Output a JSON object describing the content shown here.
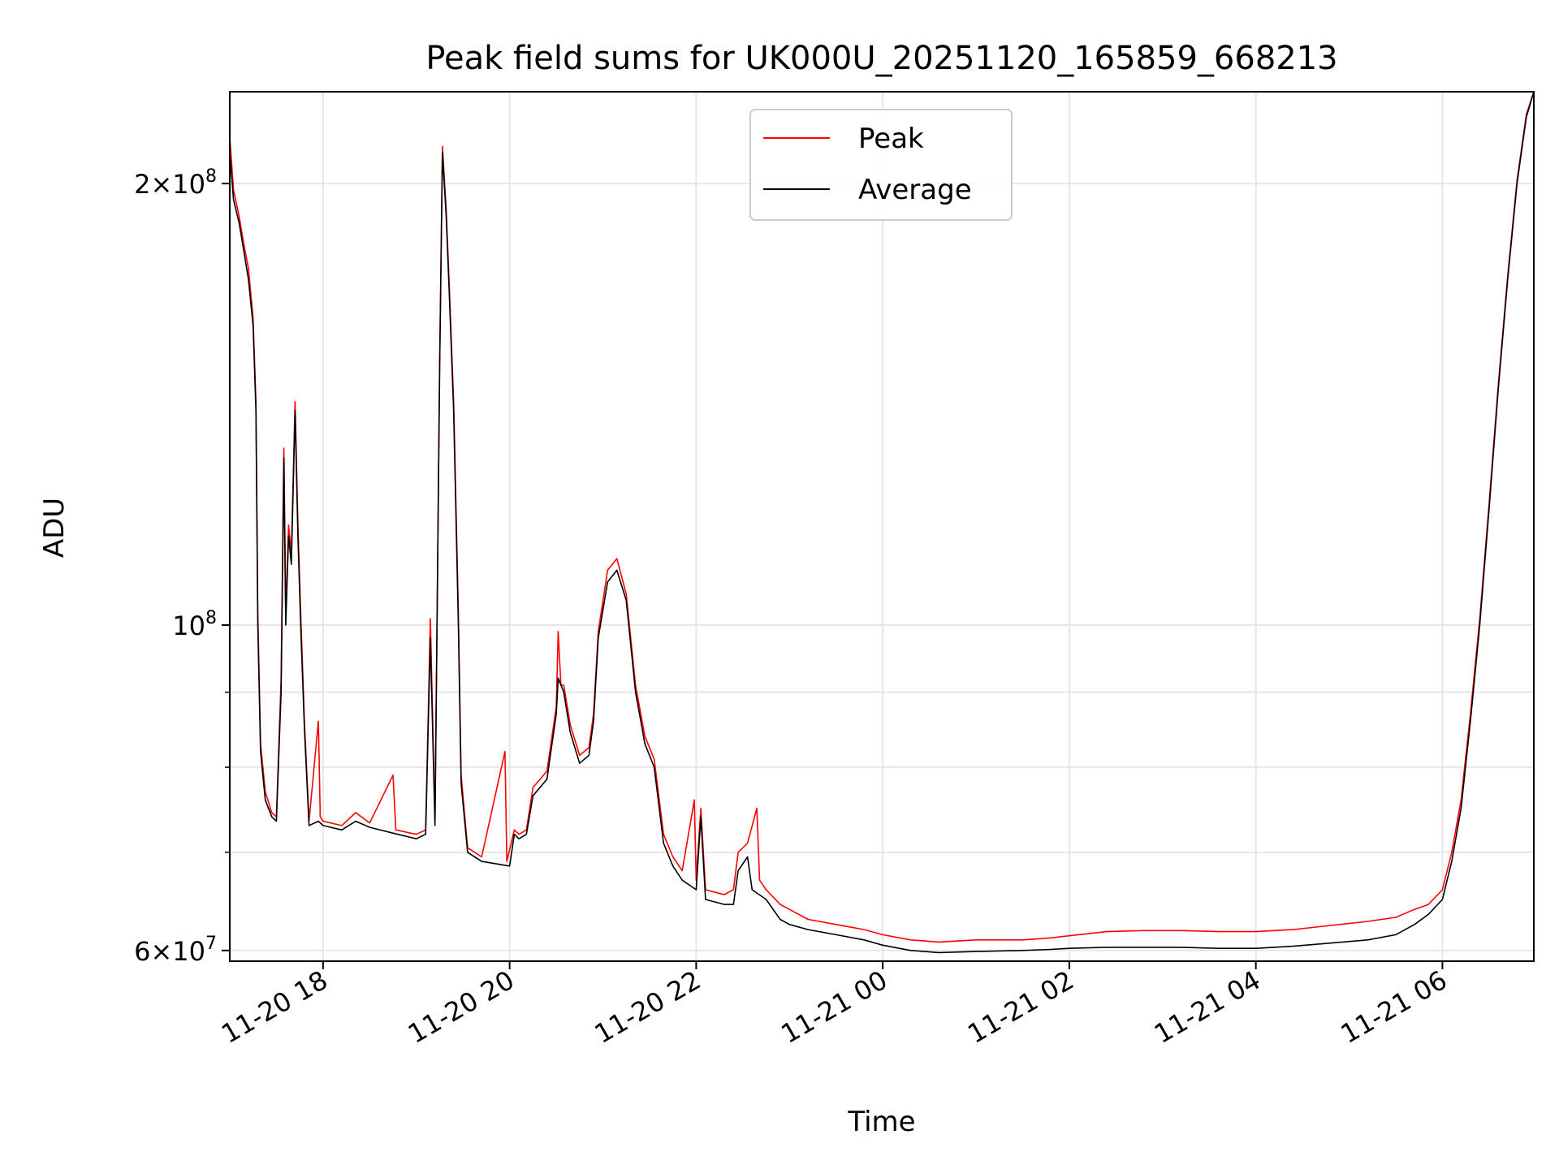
{
  "chart_data": {
    "type": "line",
    "title": "Peak field sums for UK000U_20251120_165859_668213",
    "xlabel": "Time",
    "ylabel": "ADU",
    "yscale": "log",
    "ylim": [
      59000000,
      231000000
    ],
    "xlim_hours": [
      17.0,
      30.98
    ],
    "x_unit": "hours since 2025-11-20 00:00",
    "x_ticks": [
      {
        "label": "11-20 18",
        "hour": 18
      },
      {
        "label": "11-20 20",
        "hour": 20
      },
      {
        "label": "11-20 22",
        "hour": 22
      },
      {
        "label": "11-21 00",
        "hour": 24
      },
      {
        "label": "11-21 02",
        "hour": 26
      },
      {
        "label": "11-21 04",
        "hour": 28
      },
      {
        "label": "11-21 06",
        "hour": 30
      }
    ],
    "y_major_ticks": [
      {
        "label_base": "2×10",
        "label_exp": "8",
        "value": 200000000
      },
      {
        "label_base": "10",
        "label_exp": "8",
        "value": 100000000
      },
      {
        "label_base": "6×10",
        "label_exp": "7",
        "value": 60000000
      }
    ],
    "y_minor_ticks": [
      70000000,
      80000000,
      90000000
    ],
    "legend": {
      "location": "upper center",
      "entries": [
        {
          "label": "Peak",
          "color": "#ff0000"
        },
        {
          "label": "Average",
          "color": "#000000"
        }
      ]
    },
    "series": [
      {
        "name": "Average",
        "color": "#000000",
        "points": [
          [
            17.0,
            210000000
          ],
          [
            17.04,
            195000000
          ],
          [
            17.1,
            188000000
          ],
          [
            17.15,
            180000000
          ],
          [
            17.2,
            172000000
          ],
          [
            17.25,
            160000000
          ],
          [
            17.28,
            140000000
          ],
          [
            17.3,
            100000000
          ],
          [
            17.33,
            82000000
          ],
          [
            17.38,
            76000000
          ],
          [
            17.45,
            74000000
          ],
          [
            17.5,
            73500000
          ],
          [
            17.55,
            90000000
          ],
          [
            17.58,
            130000000
          ],
          [
            17.6,
            100000000
          ],
          [
            17.63,
            115000000
          ],
          [
            17.66,
            110000000
          ],
          [
            17.7,
            140000000
          ],
          [
            17.73,
            115000000
          ],
          [
            17.76,
            100000000
          ],
          [
            17.8,
            85000000
          ],
          [
            17.85,
            73000000
          ],
          [
            17.95,
            73500000
          ],
          [
            18.0,
            73000000
          ],
          [
            18.2,
            72500000
          ],
          [
            18.35,
            73500000
          ],
          [
            18.5,
            72800000
          ],
          [
            18.8,
            72000000
          ],
          [
            19.0,
            71500000
          ],
          [
            19.1,
            72000000
          ],
          [
            19.15,
            98000000
          ],
          [
            19.2,
            73000000
          ],
          [
            19.25,
            150000000
          ],
          [
            19.28,
            210000000
          ],
          [
            19.32,
            190000000
          ],
          [
            19.35,
            170000000
          ],
          [
            19.4,
            140000000
          ],
          [
            19.45,
            100000000
          ],
          [
            19.48,
            78000000
          ],
          [
            19.55,
            70000000
          ],
          [
            19.7,
            69000000
          ],
          [
            20.0,
            68500000
          ],
          [
            20.05,
            72000000
          ],
          [
            20.1,
            71500000
          ],
          [
            20.18,
            72000000
          ],
          [
            20.25,
            76500000
          ],
          [
            20.4,
            78500000
          ],
          [
            20.5,
            87000000
          ],
          [
            20.52,
            92000000
          ],
          [
            20.58,
            90000000
          ],
          [
            20.65,
            84500000
          ],
          [
            20.75,
            80500000
          ],
          [
            20.85,
            81500000
          ],
          [
            20.9,
            86000000
          ],
          [
            20.95,
            98000000
          ],
          [
            21.05,
            107000000
          ],
          [
            21.15,
            109000000
          ],
          [
            21.25,
            104000000
          ],
          [
            21.35,
            90000000
          ],
          [
            21.45,
            83000000
          ],
          [
            21.55,
            80000000
          ],
          [
            21.65,
            71000000
          ],
          [
            21.75,
            68500000
          ],
          [
            21.85,
            67000000
          ],
          [
            22.0,
            66000000
          ],
          [
            22.05,
            74000000
          ],
          [
            22.1,
            65000000
          ],
          [
            22.3,
            64500000
          ],
          [
            22.4,
            64500000
          ],
          [
            22.45,
            68000000
          ],
          [
            22.55,
            69500000
          ],
          [
            22.6,
            66000000
          ],
          [
            22.75,
            65000000
          ],
          [
            22.9,
            63000000
          ],
          [
            23.0,
            62500000
          ],
          [
            23.2,
            62000000
          ],
          [
            23.5,
            61500000
          ],
          [
            23.8,
            61000000
          ],
          [
            24.0,
            60500000
          ],
          [
            24.3,
            60000000
          ],
          [
            24.6,
            59800000
          ],
          [
            25.0,
            59900000
          ],
          [
            25.5,
            60000000
          ],
          [
            25.8,
            60100000
          ],
          [
            26.0,
            60200000
          ],
          [
            26.4,
            60300000
          ],
          [
            26.8,
            60300000
          ],
          [
            27.2,
            60300000
          ],
          [
            27.6,
            60200000
          ],
          [
            28.0,
            60200000
          ],
          [
            28.4,
            60400000
          ],
          [
            28.8,
            60700000
          ],
          [
            29.2,
            61000000
          ],
          [
            29.5,
            61500000
          ],
          [
            29.7,
            62500000
          ],
          [
            29.85,
            63500000
          ],
          [
            30.0,
            65000000
          ],
          [
            30.1,
            69000000
          ],
          [
            30.2,
            75000000
          ],
          [
            30.3,
            86000000
          ],
          [
            30.4,
            100000000
          ],
          [
            30.5,
            120000000
          ],
          [
            30.6,
            145000000
          ],
          [
            30.7,
            172000000
          ],
          [
            30.8,
            200000000
          ],
          [
            30.9,
            222000000
          ],
          [
            30.98,
            231000000
          ]
        ]
      },
      {
        "name": "Peak",
        "color": "#ff0000",
        "points": [
          [
            17.0,
            215000000
          ],
          [
            17.04,
            198000000
          ],
          [
            17.1,
            190000000
          ],
          [
            17.15,
            182000000
          ],
          [
            17.2,
            175000000
          ],
          [
            17.25,
            162000000
          ],
          [
            17.28,
            142000000
          ],
          [
            17.3,
            102000000
          ],
          [
            17.33,
            83000000
          ],
          [
            17.38,
            77000000
          ],
          [
            17.45,
            74500000
          ],
          [
            17.5,
            74000000
          ],
          [
            17.55,
            92000000
          ],
          [
            17.58,
            132000000
          ],
          [
            17.6,
            102000000
          ],
          [
            17.63,
            117000000
          ],
          [
            17.66,
            112000000
          ],
          [
            17.7,
            142000000
          ],
          [
            17.73,
            117000000
          ],
          [
            17.76,
            102000000
          ],
          [
            17.8,
            86000000
          ],
          [
            17.85,
            73500000
          ],
          [
            17.95,
            86000000
          ],
          [
            17.97,
            74000000
          ],
          [
            18.0,
            73500000
          ],
          [
            18.2,
            73000000
          ],
          [
            18.35,
            74500000
          ],
          [
            18.5,
            73300000
          ],
          [
            18.75,
            79000000
          ],
          [
            18.78,
            72500000
          ],
          [
            19.0,
            72000000
          ],
          [
            19.1,
            72500000
          ],
          [
            19.15,
            101000000
          ],
          [
            19.2,
            73500000
          ],
          [
            19.25,
            152000000
          ],
          [
            19.28,
            212000000
          ],
          [
            19.32,
            192000000
          ],
          [
            19.35,
            172000000
          ],
          [
            19.4,
            142000000
          ],
          [
            19.45,
            102000000
          ],
          [
            19.48,
            79000000
          ],
          [
            19.55,
            70500000
          ],
          [
            19.7,
            69500000
          ],
          [
            19.95,
            82000000
          ],
          [
            19.97,
            69000000
          ],
          [
            20.05,
            72500000
          ],
          [
            20.1,
            72000000
          ],
          [
            20.18,
            72500000
          ],
          [
            20.25,
            77500000
          ],
          [
            20.4,
            79500000
          ],
          [
            20.5,
            88000000
          ],
          [
            20.52,
            99000000
          ],
          [
            20.55,
            91000000
          ],
          [
            20.58,
            91000000
          ],
          [
            20.65,
            85500000
          ],
          [
            20.75,
            81500000
          ],
          [
            20.85,
            82500000
          ],
          [
            20.9,
            87000000
          ],
          [
            20.95,
            99000000
          ],
          [
            21.05,
            109000000
          ],
          [
            21.15,
            111000000
          ],
          [
            21.25,
            105000000
          ],
          [
            21.35,
            91000000
          ],
          [
            21.45,
            84000000
          ],
          [
            21.55,
            81000000
          ],
          [
            21.65,
            72000000
          ],
          [
            21.75,
            69500000
          ],
          [
            21.85,
            68000000
          ],
          [
            21.98,
            76000000
          ],
          [
            22.0,
            67000000
          ],
          [
            22.05,
            75000000
          ],
          [
            22.1,
            66000000
          ],
          [
            22.3,
            65500000
          ],
          [
            22.4,
            66000000
          ],
          [
            22.45,
            70000000
          ],
          [
            22.55,
            71000000
          ],
          [
            22.65,
            75000000
          ],
          [
            22.68,
            67000000
          ],
          [
            22.75,
            66000000
          ],
          [
            22.9,
            64500000
          ],
          [
            23.0,
            64000000
          ],
          [
            23.2,
            63000000
          ],
          [
            23.5,
            62500000
          ],
          [
            23.8,
            62000000
          ],
          [
            24.0,
            61500000
          ],
          [
            24.3,
            61000000
          ],
          [
            24.6,
            60800000
          ],
          [
            25.0,
            61000000
          ],
          [
            25.5,
            61000000
          ],
          [
            25.8,
            61200000
          ],
          [
            26.0,
            61400000
          ],
          [
            26.4,
            61800000
          ],
          [
            26.8,
            61900000
          ],
          [
            27.2,
            61900000
          ],
          [
            27.6,
            61800000
          ],
          [
            28.0,
            61800000
          ],
          [
            28.4,
            62000000
          ],
          [
            28.8,
            62400000
          ],
          [
            29.2,
            62800000
          ],
          [
            29.5,
            63200000
          ],
          [
            29.7,
            64000000
          ],
          [
            29.85,
            64500000
          ],
          [
            30.0,
            66000000
          ],
          [
            30.1,
            70000000
          ],
          [
            30.2,
            76000000
          ],
          [
            30.3,
            87000000
          ],
          [
            30.4,
            101000000
          ],
          [
            30.5,
            121000000
          ],
          [
            30.6,
            146000000
          ],
          [
            30.7,
            173000000
          ],
          [
            30.8,
            201000000
          ],
          [
            30.9,
            223000000
          ],
          [
            30.98,
            231000000
          ]
        ]
      }
    ]
  }
}
